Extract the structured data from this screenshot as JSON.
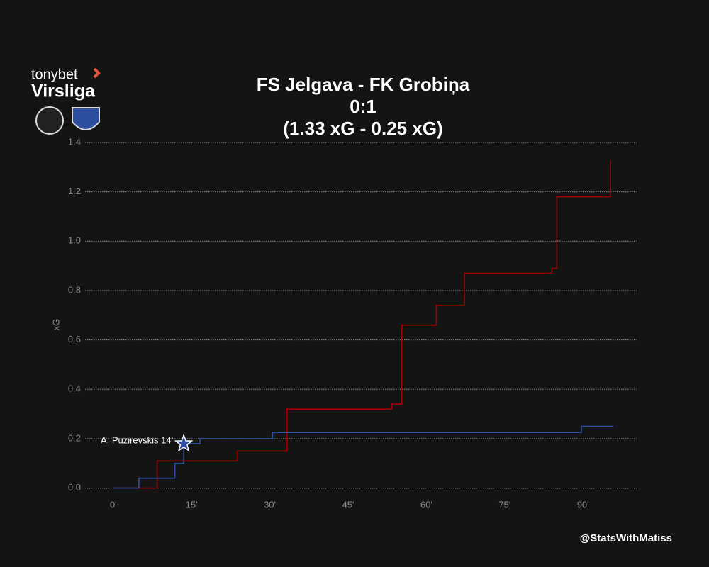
{
  "logo": {
    "brand": "tonybet",
    "league": "Virsliga"
  },
  "credit": "@StatsWithMatiss",
  "chart_data": {
    "type": "step",
    "title": [
      "FS Jelgava - FK Grobiņa",
      "0:1",
      "(1.33 xG - 0.25 xG)"
    ],
    "ylabel": "xG",
    "xlim": [
      -5.4,
      100.3
    ],
    "ylim": [
      -0.05,
      1.4
    ],
    "xticks": [
      {
        "value": 0,
        "label": "0'"
      },
      {
        "value": 15,
        "label": "15'"
      },
      {
        "value": 30,
        "label": "30'"
      },
      {
        "value": 45,
        "label": "45'"
      },
      {
        "value": 60,
        "label": "60'"
      },
      {
        "value": 75,
        "label": "75'"
      },
      {
        "value": 90,
        "label": "90'"
      }
    ],
    "yticks": [
      {
        "value": 0,
        "label": "0.0"
      },
      0.2,
      0.4,
      0.6,
      0.8,
      {
        "value": 1,
        "label": "1.0"
      },
      1.2,
      1.4
    ],
    "grid": true,
    "series": [
      {
        "name": "FS Jelgava",
        "color": "#a00000",
        "x": [
          0,
          8.4,
          23.8,
          33.3,
          53.4,
          55.3,
          61.9,
          67.3,
          84.0,
          85.0,
          95.3
        ],
        "values": [
          0,
          0.11,
          0.15,
          0.32,
          0.34,
          0.66,
          0.74,
          0.87,
          0.89,
          1.18,
          1.33
        ]
      },
      {
        "name": "FK Grobiņa",
        "color": "#2e4fa0",
        "x": [
          0,
          4.9,
          11.8,
          13.5,
          16.6,
          30.5,
          89.7,
          95.8
        ],
        "values": [
          0,
          0.04,
          0.1,
          0.18,
          0.2,
          0.225,
          0.25,
          0.25
        ]
      }
    ],
    "annotations": [
      {
        "text": "A. Puzirevskis 14'",
        "x": 13.5,
        "y": 0.18
      }
    ]
  }
}
